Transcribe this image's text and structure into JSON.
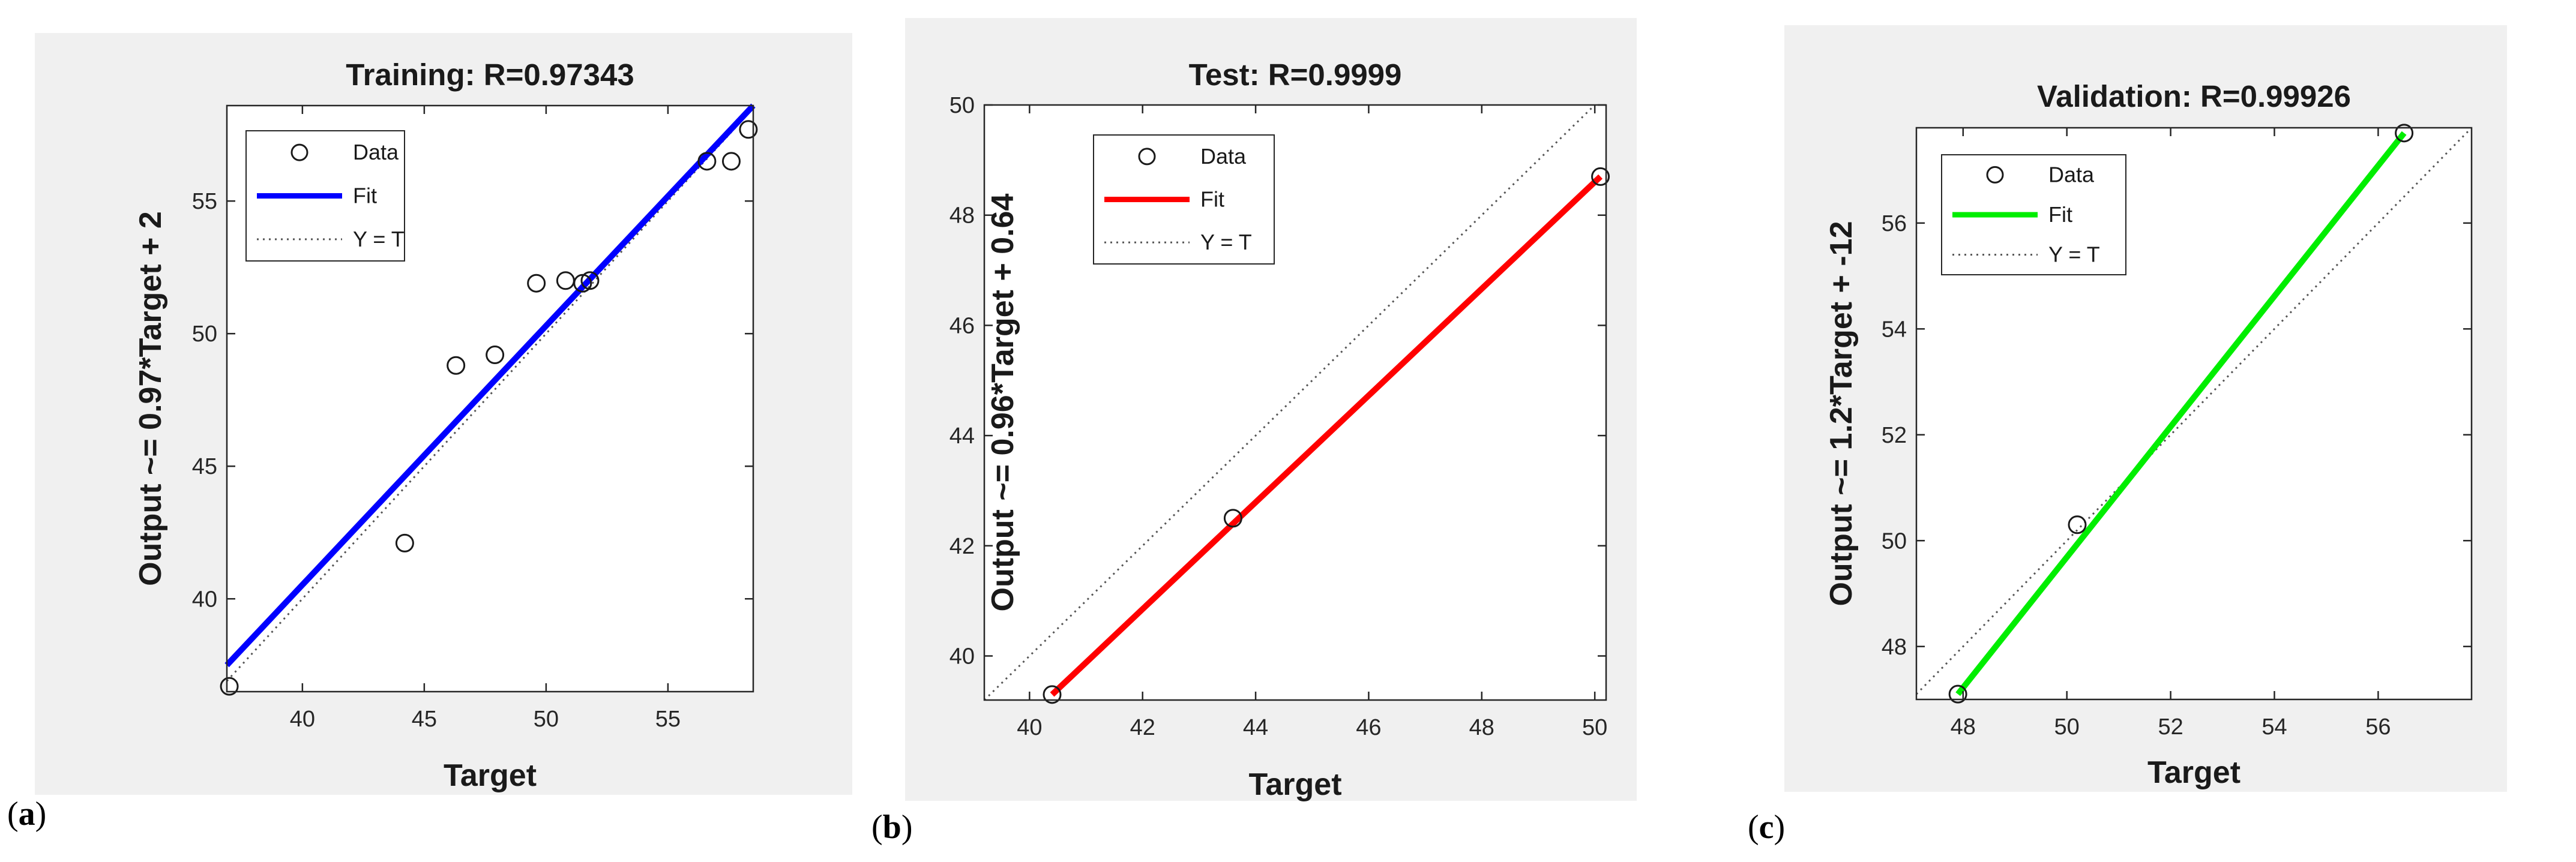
{
  "chart_data": [
    {
      "type": "scatter",
      "panel_label": {
        "open": "(",
        "letter": "a",
        "close": ")"
      },
      "title": "Training: R=0.97343",
      "xlabel": "Target",
      "ylabel": "Output ~= 0.97*Target + 2",
      "xlim": [
        36.9,
        58.5
      ],
      "ylim": [
        36.5,
        58.6
      ],
      "xticks": [
        40,
        45,
        50,
        55
      ],
      "yticks": [
        40,
        45,
        50,
        55
      ],
      "fit_color": "#0000ff",
      "data_points": {
        "x": [
          37.0,
          44.2,
          46.3,
          47.9,
          49.6,
          50.8,
          51.5,
          51.8,
          56.6,
          57.6,
          58.3
        ],
        "y": [
          36.7,
          42.1,
          48.8,
          49.2,
          51.9,
          52.0,
          51.9,
          52.0,
          56.5,
          56.5,
          57.7
        ]
      },
      "fit_line": {
        "x": [
          36.9,
          58.5
        ],
        "y": [
          37.5,
          58.6
        ]
      },
      "identity_line": {
        "x": [
          36.9,
          58.5
        ],
        "y": [
          36.9,
          58.5
        ]
      },
      "legend": {
        "entries": [
          "Data",
          "Fit",
          "Y = T"
        ],
        "position": "top-left"
      },
      "grid": false
    },
    {
      "type": "scatter",
      "panel_label": {
        "open": "(",
        "letter": "b",
        "close": ")"
      },
      "title": "Test: R=0.9999",
      "xlabel": "Target",
      "ylabel": "Output ~= 0.96*Target + 0.64",
      "xlim": [
        39.2,
        50.2
      ],
      "ylim": [
        39.2,
        50.0
      ],
      "xticks": [
        40,
        42,
        44,
        46,
        48,
        50
      ],
      "yticks": [
        40,
        42,
        44,
        46,
        48,
        50
      ],
      "fit_color": "#ff0000",
      "data_points": {
        "x": [
          40.4,
          43.6,
          50.1
        ],
        "y": [
          39.3,
          42.5,
          48.7
        ]
      },
      "fit_line": {
        "x": [
          40.4,
          50.1
        ],
        "y": [
          39.3,
          48.7
        ]
      },
      "identity_line": {
        "x": [
          39.2,
          50.0
        ],
        "y": [
          39.2,
          50.0
        ]
      },
      "legend": {
        "entries": [
          "Data",
          "Fit",
          "Y = T"
        ],
        "position": "top-left"
      },
      "grid": false
    },
    {
      "type": "scatter",
      "panel_label": {
        "open": "(",
        "letter": "c",
        "close": ")"
      },
      "title": "Validation: R=0.99926",
      "xlabel": "Target",
      "ylabel": "Output ~= 1.2*Target + -12",
      "xlim": [
        47.1,
        57.8
      ],
      "ylim": [
        47.0,
        57.8
      ],
      "xticks": [
        48,
        50,
        52,
        54,
        56
      ],
      "yticks": [
        48,
        50,
        52,
        54,
        56
      ],
      "fit_color": "#00ee00",
      "data_points": {
        "x": [
          47.9,
          50.2,
          56.5
        ],
        "y": [
          47.1,
          50.3,
          57.7
        ]
      },
      "fit_line": {
        "x": [
          47.9,
          56.5
        ],
        "y": [
          47.1,
          57.7
        ]
      },
      "identity_line": {
        "x": [
          47.1,
          57.8
        ],
        "y": [
          47.1,
          57.8
        ]
      },
      "legend": {
        "entries": [
          "Data",
          "Fit",
          "Y = T"
        ],
        "position": "top-left"
      },
      "grid": false
    }
  ]
}
